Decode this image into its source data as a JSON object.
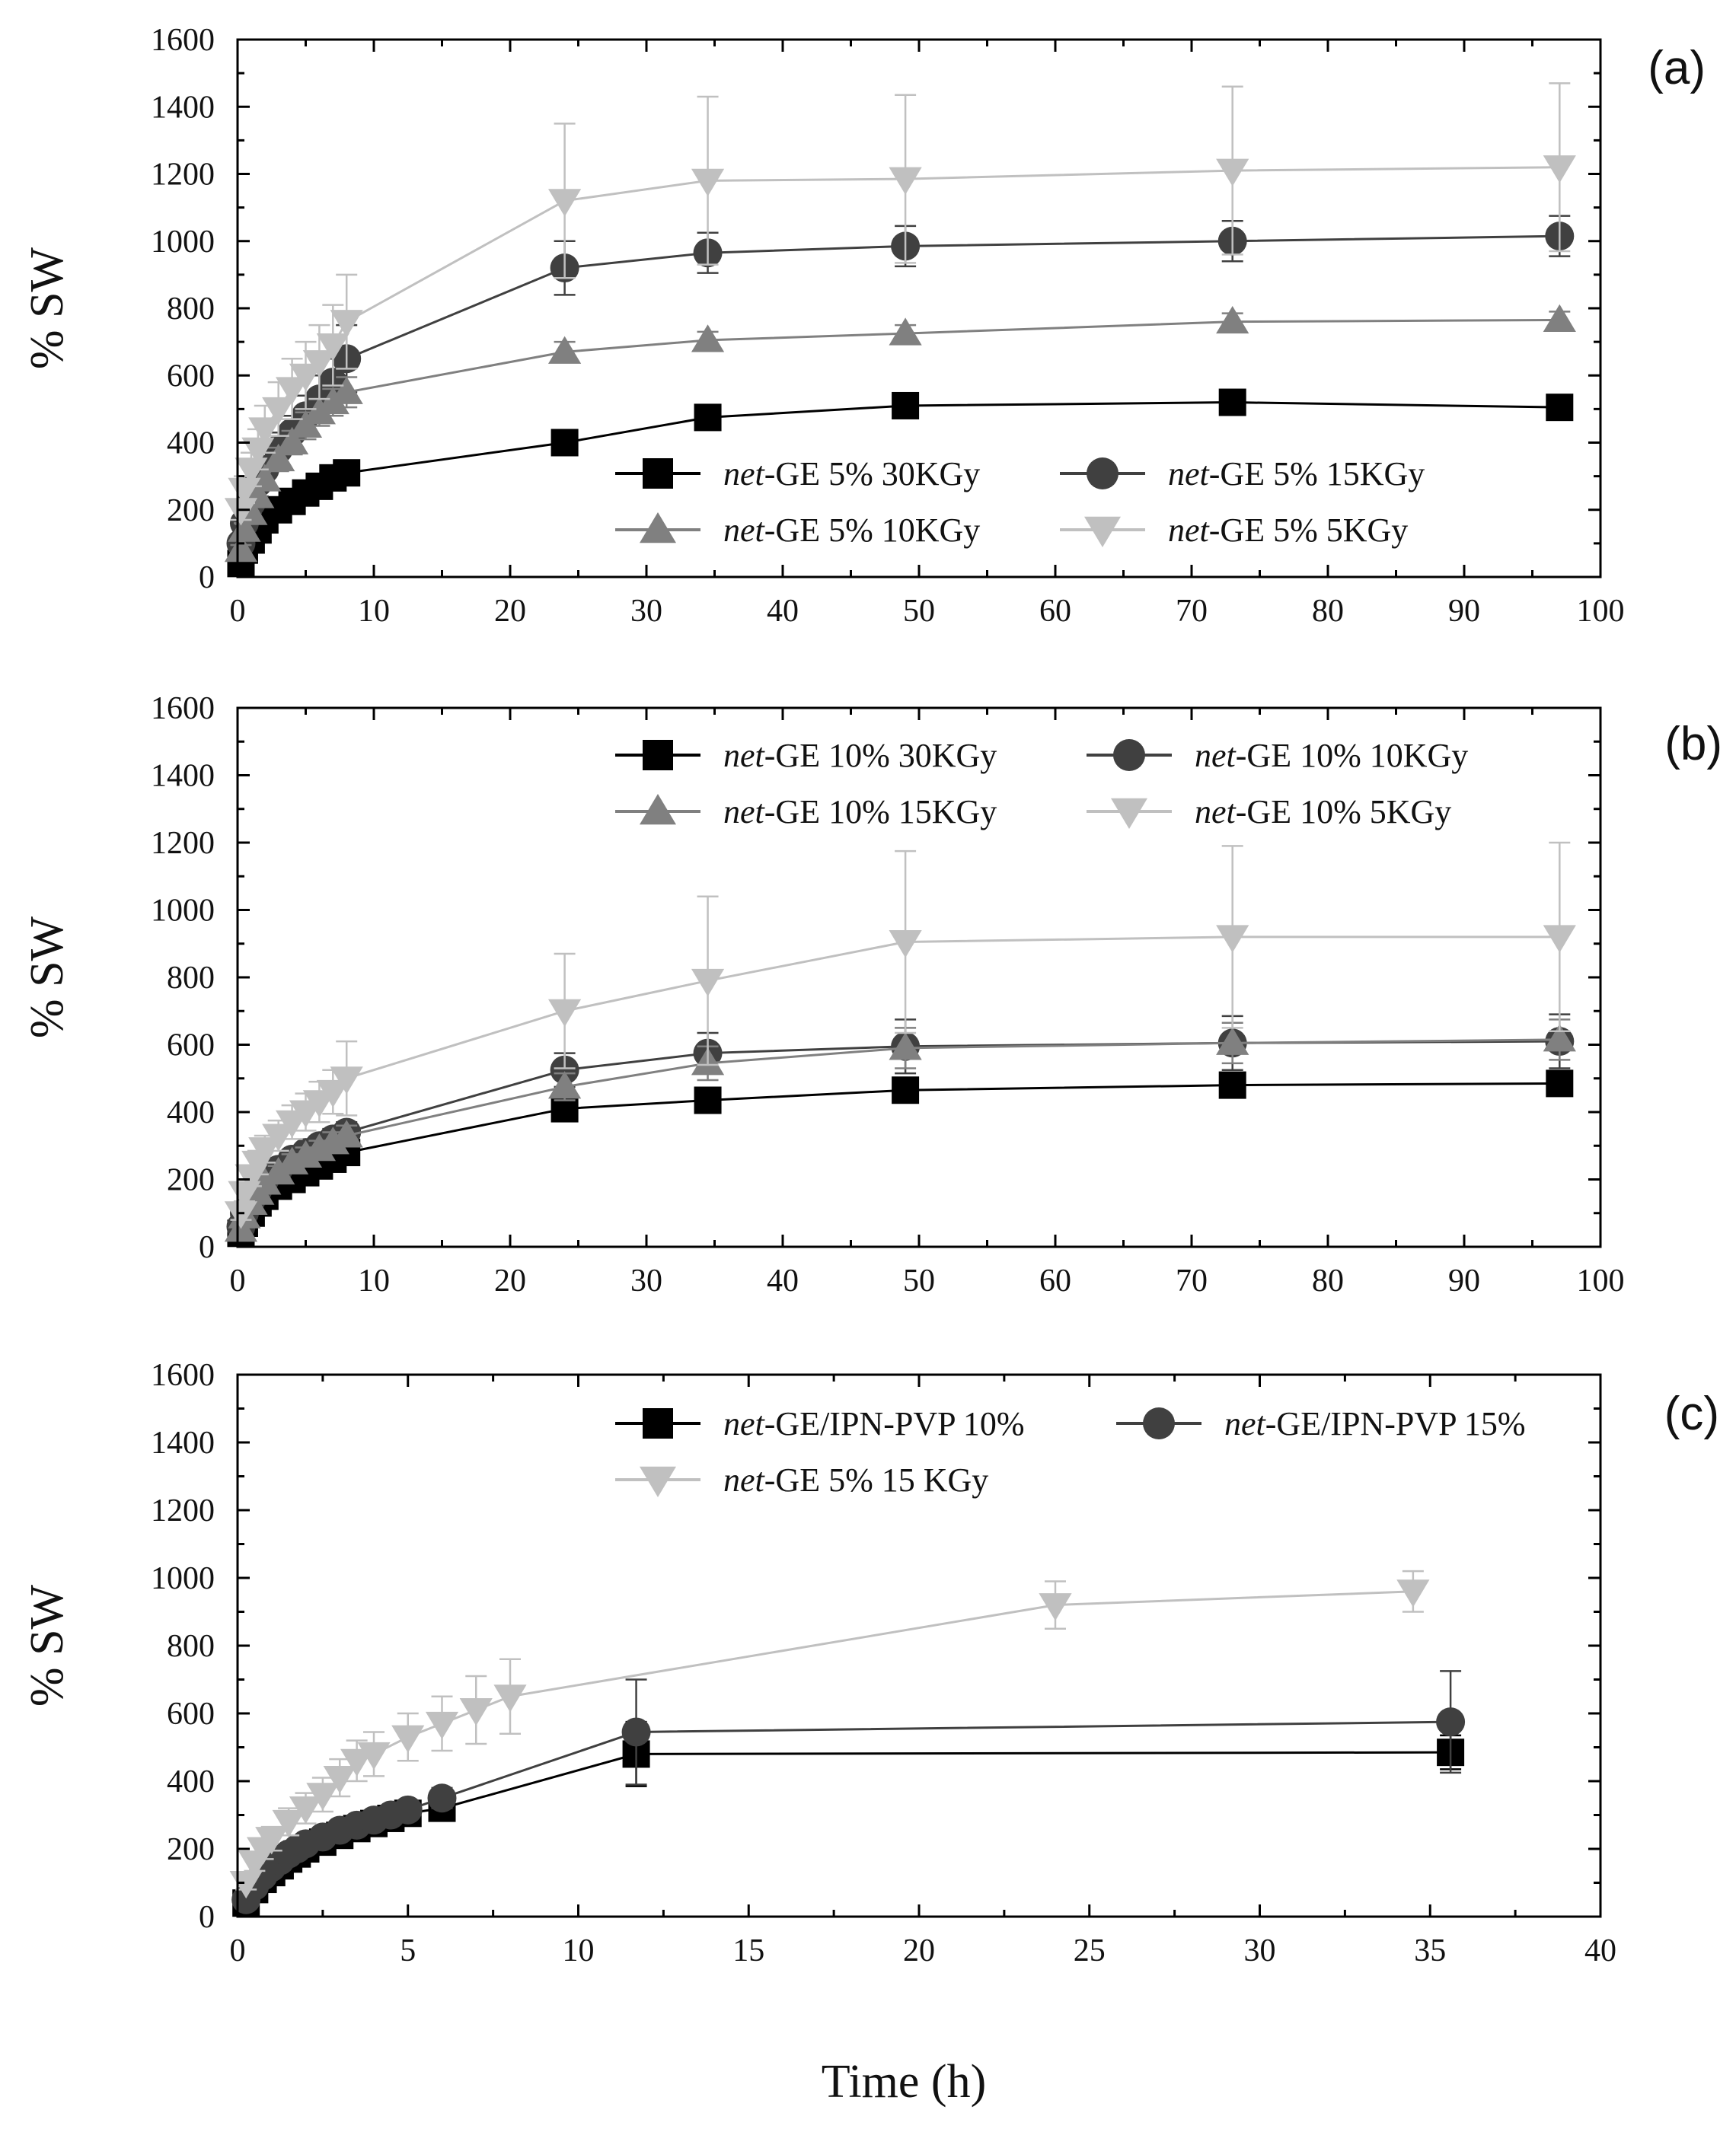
{
  "chart_data": [
    {
      "panel": "a",
      "label": "(a)",
      "type": "line",
      "xlabel": "",
      "ylabel": "% SW",
      "xlim": [
        0,
        100
      ],
      "ylim": [
        0,
        1600
      ],
      "xticks": [
        0,
        10,
        20,
        30,
        40,
        50,
        60,
        70,
        80,
        90,
        100
      ],
      "yticks": [
        0,
        200,
        400,
        600,
        800,
        1000,
        1200,
        1400,
        1600
      ],
      "legend_position": "lower-right",
      "legend_columns": 2,
      "series": [
        {
          "prefix": "net",
          "suffix": "-GE 5% 30KGy",
          "marker": "square",
          "color": "#000000",
          "x": [
            0.25,
            0.5,
            1,
            1.5,
            2,
            3,
            4,
            5,
            6,
            7,
            8,
            24,
            34.5,
            49,
            73,
            97
          ],
          "y": [
            40,
            80,
            110,
            140,
            170,
            200,
            225,
            250,
            270,
            295,
            310,
            400,
            475,
            510,
            520,
            505
          ],
          "err": [
            10,
            10,
            15,
            15,
            15,
            15,
            15,
            15,
            15,
            15,
            20,
            30,
            25,
            20,
            20,
            20
          ]
        },
        {
          "prefix": "net",
          "suffix": "-GE 5% 15KGy",
          "marker": "circle",
          "color": "#404040",
          "x": [
            0.25,
            0.5,
            1,
            1.5,
            2,
            3,
            4,
            5,
            6,
            7,
            8,
            24,
            34.5,
            49,
            73,
            97
          ],
          "y": [
            100,
            160,
            220,
            280,
            320,
            380,
            430,
            480,
            530,
            580,
            650,
            920,
            965,
            985,
            1000,
            1015
          ],
          "err": [
            20,
            30,
            30,
            40,
            40,
            50,
            50,
            60,
            70,
            70,
            100,
            80,
            60,
            60,
            60,
            60
          ]
        },
        {
          "prefix": "net",
          "suffix": "-GE 5% 10KGy",
          "marker": "triangle-up",
          "color": "#808080",
          "x": [
            0.25,
            0.5,
            1,
            1.5,
            2,
            3,
            4,
            5,
            6,
            7,
            8,
            24,
            34.5,
            49,
            73,
            97
          ],
          "y": [
            80,
            140,
            190,
            240,
            290,
            350,
            400,
            450,
            490,
            520,
            550,
            670,
            705,
            725,
            760,
            765
          ],
          "err": [
            15,
            20,
            25,
            30,
            30,
            35,
            35,
            40,
            40,
            40,
            45,
            30,
            25,
            25,
            25,
            25
          ]
        },
        {
          "prefix": "net",
          "suffix": "-GE 5% 5KGy",
          "marker": "triangle-down",
          "color": "#c0c0c0",
          "x": [
            0.25,
            0.5,
            1,
            1.5,
            2,
            3,
            4,
            5,
            6,
            7,
            8,
            24,
            34.5,
            49,
            73,
            97
          ],
          "y": [
            200,
            260,
            320,
            380,
            440,
            500,
            560,
            600,
            640,
            690,
            760,
            1120,
            1180,
            1185,
            1210,
            1220
          ],
          "err": [
            30,
            40,
            50,
            60,
            70,
            80,
            90,
            100,
            110,
            120,
            140,
            230,
            250,
            250,
            250,
            250
          ]
        }
      ]
    },
    {
      "panel": "b",
      "label": "(b)",
      "type": "line",
      "xlabel": "",
      "ylabel": "% SW",
      "xlim": [
        0,
        100
      ],
      "ylim": [
        0,
        1600
      ],
      "xticks": [
        0,
        10,
        20,
        30,
        40,
        50,
        60,
        70,
        80,
        90,
        100
      ],
      "yticks": [
        0,
        200,
        400,
        600,
        800,
        1000,
        1200,
        1400,
        1600
      ],
      "legend_position": "top-right",
      "legend_columns": 2,
      "series": [
        {
          "prefix": "net",
          "suffix": "-GE 10% 30KGy",
          "marker": "square",
          "color": "#000000",
          "x": [
            0.25,
            0.5,
            1,
            1.5,
            2,
            3,
            4,
            5,
            6,
            7,
            8,
            24,
            34.5,
            49,
            73,
            97
          ],
          "y": [
            40,
            70,
            100,
            130,
            150,
            180,
            200,
            220,
            240,
            260,
            280,
            410,
            435,
            465,
            480,
            485
          ],
          "err": [
            10,
            10,
            10,
            15,
            15,
            15,
            15,
            20,
            20,
            20,
            20,
            30,
            30,
            30,
            30,
            30
          ]
        },
        {
          "prefix": "net",
          "suffix": "-GE 10% 10KGy",
          "marker": "circle",
          "color": "#404040",
          "x": [
            0.25,
            0.5,
            1,
            1.5,
            2,
            3,
            4,
            5,
            6,
            7,
            8,
            24,
            34.5,
            49,
            73,
            97
          ],
          "y": [
            60,
            100,
            140,
            170,
            200,
            230,
            260,
            280,
            300,
            320,
            340,
            525,
            575,
            595,
            605,
            610
          ],
          "err": [
            10,
            15,
            15,
            20,
            20,
            20,
            25,
            25,
            25,
            30,
            30,
            50,
            60,
            80,
            80,
            80
          ]
        },
        {
          "prefix": "net",
          "suffix": "-GE 10% 15KGy",
          "marker": "triangle-up",
          "color": "#808080",
          "x": [
            0.25,
            0.5,
            1,
            1.5,
            2,
            3,
            4,
            5,
            6,
            7,
            8,
            24,
            34.5,
            49,
            73,
            97
          ],
          "y": [
            50,
            90,
            130,
            160,
            190,
            220,
            250,
            270,
            290,
            310,
            330,
            475,
            545,
            590,
            605,
            615
          ],
          "err": [
            10,
            15,
            15,
            20,
            20,
            20,
            25,
            25,
            25,
            30,
            30,
            40,
            50,
            60,
            60,
            60
          ]
        },
        {
          "prefix": "net",
          "suffix": "-GE 10% 5KGy",
          "marker": "triangle-down",
          "color": "#c0c0c0",
          "x": [
            0.25,
            0.5,
            1,
            1.5,
            2,
            3,
            4,
            5,
            6,
            7,
            8,
            24,
            34.5,
            49,
            73,
            97
          ],
          "y": [
            100,
            160,
            210,
            250,
            290,
            330,
            370,
            400,
            430,
            460,
            500,
            700,
            790,
            905,
            920,
            920
          ],
          "err": [
            20,
            25,
            30,
            35,
            40,
            45,
            50,
            55,
            60,
            65,
            110,
            170,
            250,
            270,
            270,
            280
          ]
        }
      ]
    },
    {
      "panel": "c",
      "label": "(c)",
      "type": "line",
      "xlabel": "Time (h)",
      "ylabel": "% SW",
      "xlim": [
        0,
        40
      ],
      "ylim": [
        0,
        1600
      ],
      "xticks": [
        0,
        5,
        10,
        15,
        20,
        25,
        30,
        35,
        40
      ],
      "yticks": [
        0,
        200,
        400,
        600,
        800,
        1000,
        1200,
        1400,
        1600
      ],
      "legend_position": "top-right",
      "legend_columns": 2,
      "series": [
        {
          "prefix": "net",
          "suffix": "-GE/IPN-PVP 10%",
          "marker": "square",
          "color": "#000000",
          "x": [
            0.25,
            0.5,
            0.75,
            1,
            1.25,
            1.5,
            1.75,
            2,
            2.5,
            3,
            3.5,
            4,
            4.5,
            5,
            6,
            11.7,
            35.6
          ],
          "y": [
            40,
            80,
            110,
            130,
            150,
            170,
            185,
            200,
            220,
            240,
            260,
            275,
            290,
            305,
            320,
            480,
            485
          ],
          "err": [
            10,
            10,
            10,
            15,
            15,
            15,
            15,
            15,
            20,
            20,
            20,
            20,
            20,
            20,
            25,
            95,
            50
          ]
        },
        {
          "prefix": "net",
          "suffix": "-GE/IPN-PVP 15%",
          "marker": "circle",
          "color": "#404040",
          "x": [
            0.25,
            0.5,
            0.75,
            1,
            1.25,
            1.5,
            1.75,
            2,
            2.5,
            3,
            3.5,
            4,
            4.5,
            5,
            6,
            11.7,
            35.6
          ],
          "y": [
            50,
            90,
            120,
            145,
            165,
            185,
            200,
            215,
            235,
            255,
            270,
            285,
            300,
            315,
            350,
            545,
            575
          ],
          "err": [
            10,
            10,
            15,
            15,
            15,
            15,
            15,
            20,
            20,
            20,
            20,
            25,
            25,
            25,
            30,
            155,
            150
          ]
        },
        {
          "prefix": "net",
          "suffix": "-GE 5% 15 KGy",
          "marker": "triangle-down",
          "color": "#c0c0c0",
          "x": [
            0.25,
            0.5,
            0.75,
            1,
            1.5,
            2,
            2.5,
            3,
            3.5,
            4,
            5,
            6,
            7,
            8,
            24,
            34.5
          ],
          "y": [
            100,
            160,
            200,
            230,
            280,
            320,
            360,
            410,
            460,
            480,
            530,
            570,
            610,
            650,
            920,
            960
          ],
          "err": [
            20,
            25,
            30,
            35,
            40,
            45,
            50,
            55,
            60,
            65,
            70,
            80,
            100,
            110,
            70,
            60
          ]
        }
      ]
    }
  ]
}
